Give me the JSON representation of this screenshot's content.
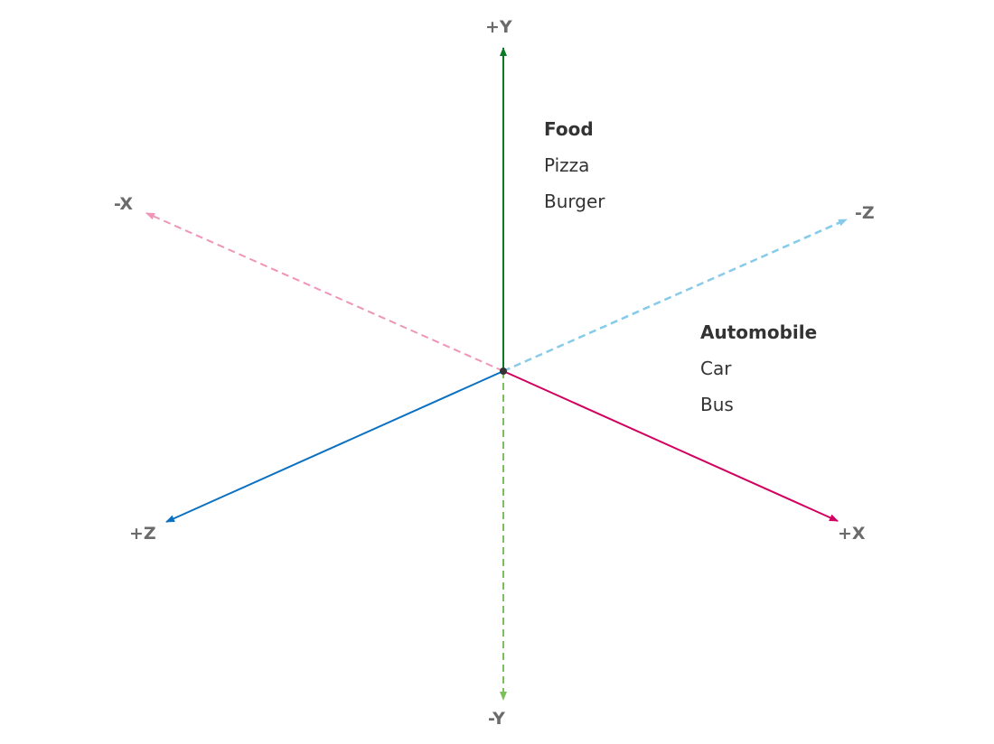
{
  "axes": {
    "pos_y": {
      "label": "+Y",
      "color": "#0b7a26",
      "style": "solid"
    },
    "neg_y": {
      "label": "-Y",
      "color": "#7bbf5e",
      "style": "dashed"
    },
    "pos_x": {
      "label": "+X",
      "color": "#d1005f",
      "style": "solid"
    },
    "neg_x": {
      "label": "-X",
      "color": "#f094b8",
      "style": "dashed"
    },
    "pos_z": {
      "label": "+Z",
      "color": "#0a70c2",
      "style": "solid"
    },
    "neg_z": {
      "label": "-Z",
      "color": "#86cbea",
      "style": "dashed"
    }
  },
  "origin_color": "#333333",
  "groups": [
    {
      "heading": "Food",
      "items": [
        "Pizza",
        "Burger"
      ]
    },
    {
      "heading": "Automobile",
      "items": [
        "Car",
        "Bus"
      ]
    }
  ]
}
